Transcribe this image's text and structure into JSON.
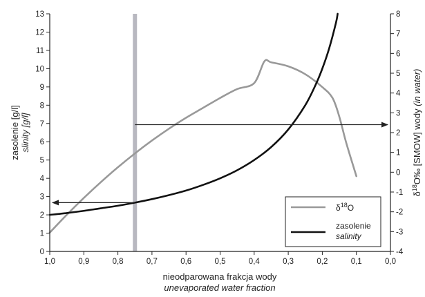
{
  "chart_data": {
    "type": "line",
    "x_axis": {
      "label_pl": "nieodparowana frakcja wody",
      "label_en": "unevaporated water fraction",
      "range": [
        1.0,
        0.0
      ],
      "ticks": [
        "1,0",
        "0,9",
        "0,8",
        "0,7",
        "0,6",
        "0,5",
        "0,4",
        "0,3",
        "0,2",
        "0,1",
        "0,0"
      ]
    },
    "y_left": {
      "label_pl": "zasolenie [g/l]",
      "label_en": "slinity [g/l]",
      "range": [
        0,
        13
      ],
      "ticks": [
        "0",
        "1",
        "2",
        "3",
        "4",
        "5",
        "6",
        "7",
        "8",
        "9",
        "10",
        "11",
        "12",
        "13"
      ]
    },
    "y_right": {
      "label_pre": "δ",
      "label_sup": "18",
      "label_main": "O‰ [SMOW] wody ",
      "label_italic": "(in water)",
      "range": [
        -4,
        8
      ],
      "ticks": [
        "-4",
        "-3",
        "-2",
        "-1",
        "0",
        "1",
        "2",
        "3",
        "4",
        "5",
        "6",
        "7",
        "8"
      ]
    },
    "series": [
      {
        "key": "delta18o",
        "name_pre": "δ",
        "name_sup": "18",
        "name_post": "O",
        "axis": "right",
        "color": "#999999",
        "x": [
          1.0,
          0.95,
          0.9,
          0.85,
          0.8,
          0.75,
          0.7,
          0.65,
          0.6,
          0.55,
          0.5,
          0.45,
          0.4,
          0.37,
          0.35,
          0.3,
          0.25,
          0.2,
          0.17,
          0.15,
          0.13,
          0.1
        ],
        "y": [
          -3.05,
          -2.15,
          -1.3,
          -0.5,
          0.25,
          0.95,
          1.6,
          2.2,
          2.75,
          3.25,
          3.75,
          4.2,
          4.5,
          5.6,
          5.55,
          5.35,
          4.95,
          4.3,
          3.75,
          2.8,
          1.5,
          -0.2
        ]
      },
      {
        "key": "salinity",
        "name": "zasolenie",
        "name_italic": "salinity",
        "axis": "left",
        "color": "#111111",
        "x": [
          1.0,
          0.95,
          0.9,
          0.85,
          0.8,
          0.75,
          0.7,
          0.65,
          0.6,
          0.55,
          0.5,
          0.45,
          0.4,
          0.35,
          0.3,
          0.25,
          0.22,
          0.2,
          0.18,
          0.16,
          0.155
        ],
        "y": [
          2.0,
          2.1,
          2.22,
          2.36,
          2.5,
          2.67,
          2.86,
          3.08,
          3.33,
          3.64,
          4.0,
          4.44,
          5.0,
          5.71,
          6.67,
          8.0,
          9.1,
          10.0,
          11.1,
          12.5,
          13.0
        ]
      }
    ],
    "vertical_band_x": 0.75,
    "annotations": [
      {
        "from": {
          "x": 0.75,
          "y": 2.4,
          "axis": "right"
        },
        "to": {
          "x": 0.0,
          "y": 2.4,
          "axis": "right"
        },
        "direction": "right"
      },
      {
        "from": {
          "x": 0.75,
          "y": 2.67,
          "axis": "left"
        },
        "to": {
          "x": 1.0,
          "y": 2.67,
          "axis": "left"
        },
        "direction": "left"
      }
    ],
    "legend_position": "bottom-right",
    "grid": false
  }
}
